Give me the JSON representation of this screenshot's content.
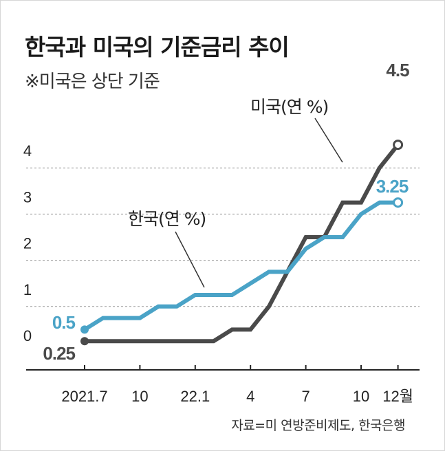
{
  "title": "한국과 미국의 기준금리 추이",
  "subtitle": "※미국은 상단 기준",
  "source": "자료=미 연방준비제도, 한국은행",
  "colors": {
    "us": "#4a4a4a",
    "korea": "#4aa3c7",
    "grid": "#9a9a9a",
    "axis": "#222222",
    "text": "#222222"
  },
  "chart_data": {
    "type": "line",
    "title": "한국과 미국의 기준금리 추이",
    "subtitle": "※미국은 상단 기준",
    "xlabel": "",
    "ylabel": "",
    "x_ticks": [
      {
        "m": 0,
        "label": "2021.7"
      },
      {
        "m": 3,
        "label": "10"
      },
      {
        "m": 6,
        "label": "22.1"
      },
      {
        "m": 9,
        "label": "4"
      },
      {
        "m": 12,
        "label": "7"
      },
      {
        "m": 15,
        "label": "10"
      },
      {
        "m": 17,
        "label": "12월"
      }
    ],
    "xlim": [
      0,
      17
    ],
    "y_ticks": [
      0,
      1,
      2,
      3,
      4
    ],
    "ylim": [
      0,
      4.5
    ],
    "grid": "horizontal dashed",
    "series": [
      {
        "name": "미국(연 %)",
        "color": "#4a4a4a",
        "points": [
          [
            0,
            0.25
          ],
          [
            7,
            0.25
          ],
          [
            8,
            0.5
          ],
          [
            9,
            0.5
          ],
          [
            10,
            1.0
          ],
          [
            11,
            1.75
          ],
          [
            12,
            2.5
          ],
          [
            13,
            2.5
          ],
          [
            14,
            3.25
          ],
          [
            15,
            3.25
          ],
          [
            16,
            4.0
          ],
          [
            17,
            4.5
          ]
        ],
        "start_label": "0.25",
        "end_label": "4.5"
      },
      {
        "name": "한국(연 %)",
        "color": "#4aa3c7",
        "points": [
          [
            0,
            0.5
          ],
          [
            1,
            0.75
          ],
          [
            2,
            0.75
          ],
          [
            3,
            0.75
          ],
          [
            4,
            1.0
          ],
          [
            5,
            1.0
          ],
          [
            6,
            1.25
          ],
          [
            7,
            1.25
          ],
          [
            8,
            1.25
          ],
          [
            9,
            1.5
          ],
          [
            10,
            1.75
          ],
          [
            11,
            1.75
          ],
          [
            12,
            2.25
          ],
          [
            13,
            2.5
          ],
          [
            14,
            2.5
          ],
          [
            15,
            3.0
          ],
          [
            16,
            3.25
          ],
          [
            17,
            3.25
          ]
        ],
        "start_label": "0.5",
        "end_label": "3.25"
      }
    ]
  }
}
